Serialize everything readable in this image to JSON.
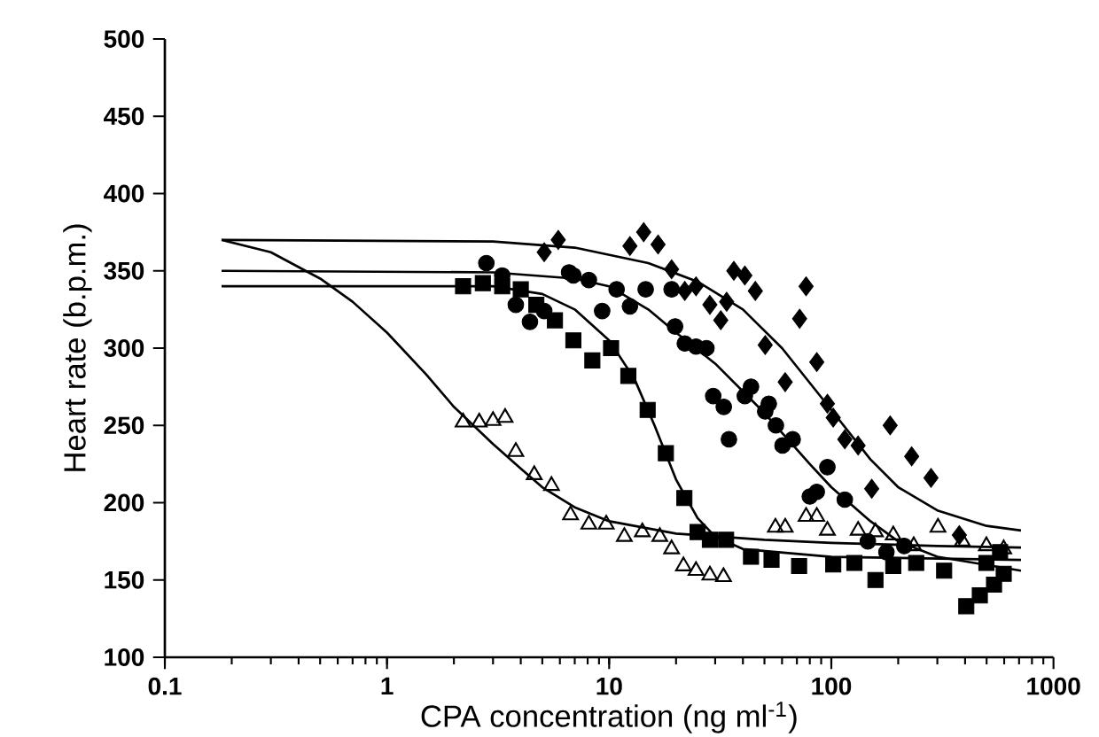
{
  "chart_data": {
    "type": "scatter",
    "xlabel": "CPA concentration (ng ml$^{-1}$)",
    "ylabel": "Heart rate (b.p.m.)",
    "log": "x",
    "xlim": [
      0.1,
      1000
    ],
    "xticks": [
      0.1,
      1,
      10,
      100,
      1000
    ],
    "ylim": [
      100,
      500
    ],
    "yticks": [
      100,
      150,
      200,
      250,
      300,
      350,
      400,
      450,
      500
    ],
    "series": [
      {
        "marker": "triangle",
        "color": "#000000",
        "x": [
          2.2,
          2.6,
          3.0,
          3.4,
          3.8,
          4.6,
          5.5,
          6.7,
          8.1,
          9.7,
          11.7,
          14.1,
          16.9,
          19.1,
          21.6,
          24.6,
          28.4,
          32.7,
          56,
          62,
          77,
          86,
          96,
          132,
          158,
          190,
          235,
          302,
          389,
          499,
          597
        ],
        "values": [
          252,
          252,
          253,
          255,
          233,
          218,
          211,
          192,
          186,
          186,
          178,
          181,
          178,
          170,
          159,
          156,
          153,
          152,
          184,
          184,
          191,
          191,
          182,
          182,
          181,
          179,
          172,
          184,
          175,
          172,
          170
        ]
      },
      {
        "marker": "square",
        "color": "#000000",
        "x": [
          2.2,
          2.7,
          3.3,
          4.0,
          4.7,
          5.7,
          6.9,
          8.4,
          10.2,
          12.2,
          14.9,
          18.0,
          21.8,
          25,
          28.4,
          33.6,
          43.5,
          53.8,
          71.6,
          102,
          127,
          158,
          190,
          241,
          322,
          405,
          466,
          540,
          597,
          499,
          575
        ],
        "values": [
          340,
          342,
          340,
          338,
          328,
          318,
          305,
          292,
          300,
          282,
          260,
          232,
          203,
          181,
          176,
          176,
          165,
          163,
          159,
          160,
          161,
          150,
          159,
          161,
          156,
          133,
          140,
          147,
          154,
          161,
          168
        ]
      },
      {
        "marker": "circle",
        "color": "#000000",
        "x": [
          2.8,
          3.3,
          3.8,
          4.4,
          5.1,
          6.6,
          6.9,
          8.1,
          9.3,
          10.8,
          12.4,
          14.6,
          19.1,
          19.8,
          21.9,
          24.6,
          27.4,
          29.4,
          32.8,
          34.6,
          40.8,
          43.5,
          50.4,
          52.3,
          56.3,
          60.3,
          67,
          80,
          86,
          96,
          115,
          146,
          177,
          213
        ],
        "values": [
          355,
          347,
          328,
          317,
          324,
          349,
          347,
          344,
          324,
          338,
          327,
          338,
          338,
          314,
          303,
          301,
          300,
          269,
          262,
          241,
          269,
          275,
          259,
          264,
          250,
          237,
          241,
          204,
          207,
          223,
          202,
          175,
          168,
          172
        ]
      },
      {
        "marker": "diamond",
        "color": "#000000",
        "x": [
          5.1,
          5.9,
          12.4,
          14.3,
          16.6,
          19.1,
          21.9,
          24.6,
          28.4,
          31.8,
          33.8,
          36.4,
          40.8,
          45.5,
          50.4,
          62,
          72,
          77,
          86,
          96,
          102,
          115,
          132,
          152,
          184,
          230,
          281,
          377
        ],
        "values": [
          362,
          370,
          366,
          375,
          367,
          351,
          337,
          340,
          328,
          318,
          330,
          350,
          347,
          337,
          302,
          278,
          319,
          340,
          291,
          264,
          255,
          241,
          237,
          209,
          250,
          230,
          216,
          179
        ]
      },
      {
        "type": "line",
        "marker": "none",
        "color": "#000000",
        "x": [
          0.18,
          0.3,
          0.5,
          0.7,
          1,
          1.5,
          2,
          3,
          4,
          5,
          7,
          10,
          20,
          50,
          100,
          300,
          714
        ],
        "values": [
          370,
          362,
          345,
          330,
          310,
          283,
          262,
          238,
          222,
          210,
          197,
          188,
          180,
          176,
          174,
          172,
          171
        ]
      },
      {
        "type": "line",
        "marker": "none",
        "color": "#000000",
        "x": [
          0.18,
          1,
          3,
          5,
          7,
          10,
          13,
          16,
          20,
          25,
          30,
          40,
          100,
          714
        ],
        "values": [
          340,
          340,
          340,
          335,
          325,
          305,
          280,
          250,
          215,
          190,
          178,
          170,
          165,
          163
        ]
      },
      {
        "type": "line",
        "marker": "none",
        "color": "#000000",
        "x": [
          0.18,
          3,
          7,
          10,
          15,
          20,
          30,
          50,
          80,
          100,
          150,
          200,
          300,
          714
        ],
        "values": [
          350,
          349,
          345,
          340,
          325,
          310,
          290,
          258,
          225,
          210,
          188,
          175,
          165,
          156
        ]
      },
      {
        "type": "line",
        "marker": "none",
        "color": "#000000",
        "x": [
          0.18,
          3,
          7,
          15,
          25,
          40,
          60,
          100,
          150,
          200,
          300,
          500,
          714
        ],
        "values": [
          370,
          369,
          365,
          355,
          343,
          325,
          300,
          260,
          228,
          210,
          195,
          185,
          182
        ]
      }
    ]
  }
}
